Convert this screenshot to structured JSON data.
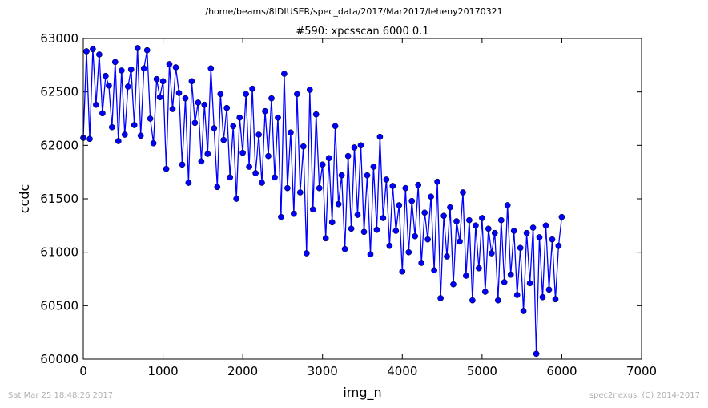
{
  "header": {
    "path": "/home/beams/8IDIUSER/spec_data/2017/Mar2017/leheny20170321"
  },
  "footer": {
    "timestamp": "Sat Mar 25 18:48:26 2017",
    "credit": "spec2nexus, (C) 2014-2017"
  },
  "colors": {
    "series": "#0000ff",
    "axes": "#000000",
    "background": "#ffffff",
    "footer_text": "#b0b0b0"
  },
  "chart_data": {
    "type": "line",
    "title": "#590: xpcsscan 6000 0.1",
    "xlabel": "img_n",
    "ylabel": "ccdc",
    "xlim": [
      0,
      7000
    ],
    "ylim": [
      60000,
      63000
    ],
    "xticks": [
      "0",
      "1000",
      "2000",
      "3000",
      "4000",
      "5000",
      "6000",
      "7000"
    ],
    "yticks": [
      "60000",
      "60500",
      "61000",
      "61500",
      "62000",
      "62500",
      "63000"
    ],
    "grid": false,
    "legend": "none",
    "markers": "circle",
    "series": [
      {
        "x": [
          0,
          40,
          80,
          120,
          160,
          200,
          240,
          280,
          320,
          360,
          400,
          440,
          480,
          520,
          560,
          600,
          640,
          680,
          720,
          760,
          800,
          840,
          880,
          920,
          960,
          1000,
          1040,
          1080,
          1120,
          1160,
          1200,
          1240,
          1280,
          1320,
          1360,
          1400,
          1440,
          1480,
          1520,
          1560,
          1600,
          1640,
          1680,
          1720,
          1760,
          1800,
          1840,
          1880,
          1920,
          1960,
          2000,
          2040,
          2080,
          2120,
          2160,
          2200,
          2240,
          2280,
          2320,
          2360,
          2400,
          2440,
          2480,
          2520,
          2560,
          2600,
          2640,
          2680,
          2720,
          2760,
          2800,
          2840,
          2880,
          2920,
          2960,
          3000,
          3040,
          3080,
          3120,
          3160,
          3200,
          3240,
          3280,
          3320,
          3360,
          3400,
          3440,
          3480,
          3520,
          3560,
          3600,
          3640,
          3680,
          3720,
          3760,
          3800,
          3840,
          3880,
          3920,
          3960,
          4000,
          4040,
          4080,
          4120,
          4160,
          4200,
          4240,
          4280,
          4320,
          4360,
          4400,
          4440,
          4480,
          4520,
          4560,
          4600,
          4640,
          4680,
          4720,
          4760,
          4800,
          4840,
          4880,
          4920,
          4960,
          5000,
          5040,
          5080,
          5120,
          5160,
          5200,
          5240,
          5280,
          5320,
          5360,
          5400,
          5440,
          5480,
          5520,
          5560,
          5600,
          5640,
          5680,
          5720,
          5760,
          5800,
          5840,
          5880,
          5920,
          5960,
          6000
        ],
        "y": [
          62070,
          62880,
          62060,
          62900,
          62380,
          62850,
          62300,
          62650,
          62560,
          62170,
          62780,
          62040,
          62700,
          62100,
          62550,
          62710,
          62190,
          62910,
          62090,
          62720,
          62890,
          62250,
          62020,
          62620,
          62450,
          62600,
          61780,
          62760,
          62340,
          62730,
          62490,
          61820,
          62440,
          61650,
          62600,
          62210,
          62400,
          61850,
          62380,
          61920,
          62720,
          62160,
          61610,
          62480,
          62050,
          62350,
          61700,
          62180,
          61500,
          62260,
          61930,
          62480,
          61800,
          62530,
          61740,
          62100,
          61650,
          62320,
          61900,
          62440,
          61700,
          62260,
          61330,
          62670,
          61600,
          62120,
          61360,
          62480,
          61560,
          61990,
          60990,
          62520,
          61400,
          62290,
          61600,
          61820,
          61130,
          61880,
          61280,
          62180,
          61450,
          61720,
          61030,
          61900,
          61220,
          61980,
          61350,
          62000,
          61190,
          61720,
          60980,
          61800,
          61210,
          62080,
          61320,
          61680,
          61060,
          61620,
          61200,
          61440,
          60820,
          61600,
          61000,
          61480,
          61150,
          61630,
          60900,
          61370,
          61120,
          61520,
          60830,
          61660,
          60570,
          61340,
          60960,
          61420,
          60700,
          61290,
          61100,
          61560,
          60780,
          61300,
          60550,
          61250,
          60850,
          61320,
          60630,
          61220,
          60990,
          61180,
          60550,
          61300,
          60720,
          61440,
          60790,
          61200,
          60600,
          61040,
          60450,
          61180,
          60710,
          61230,
          60050,
          61140,
          60580,
          61250,
          60650,
          61120,
          60560,
          61060,
          61330
        ]
      }
    ]
  }
}
